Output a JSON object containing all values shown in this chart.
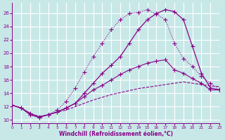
{
  "xlabel": "Windchill (Refroidissement éolien,°C)",
  "xlim": [
    0,
    23
  ],
  "ylim": [
    9.5,
    27.5
  ],
  "xticks": [
    0,
    1,
    2,
    3,
    4,
    5,
    6,
    7,
    8,
    9,
    10,
    11,
    12,
    13,
    14,
    15,
    16,
    17,
    18,
    19,
    20,
    21,
    22,
    23
  ],
  "yticks": [
    10,
    12,
    14,
    16,
    18,
    20,
    22,
    24,
    26
  ],
  "bg_color": "#c8e8e8",
  "line_color": "#880088",
  "grid_color": "#ffffff",
  "line1_x": [
    0,
    1,
    2,
    3,
    4,
    5,
    6,
    7,
    8,
    9,
    10,
    11,
    12,
    13,
    14,
    15,
    16,
    17,
    18,
    19,
    20,
    21,
    22,
    23
  ],
  "line1_y": [
    12.2,
    11.8,
    10.8,
    10.4,
    10.8,
    11.5,
    12.8,
    14.8,
    17.2,
    19.5,
    21.5,
    23.5,
    25.0,
    25.9,
    26.1,
    26.5,
    25.8,
    25.0,
    21.5,
    19.2,
    18.0,
    16.5,
    15.5,
    14.5
  ],
  "line2_x": [
    0,
    1,
    2,
    3,
    4,
    5,
    6,
    7,
    8,
    9,
    10,
    11,
    12,
    13,
    14,
    15,
    16,
    17,
    18,
    19,
    20,
    21,
    22,
    23
  ],
  "line2_y": [
    12.2,
    11.8,
    10.8,
    10.4,
    10.8,
    11.2,
    11.8,
    12.5,
    14.0,
    15.5,
    17.0,
    18.2,
    19.5,
    21.5,
    23.5,
    25.0,
    25.9,
    26.5,
    26.2,
    25.0,
    21.0,
    17.0,
    14.8,
    14.5
  ],
  "line3_x": [
    0,
    1,
    2,
    3,
    4,
    5,
    6,
    7,
    8,
    9,
    10,
    11,
    12,
    13,
    14,
    15,
    16,
    17,
    18,
    19,
    20,
    21,
    22,
    23
  ],
  "line3_y": [
    12.2,
    11.8,
    11.0,
    10.5,
    10.8,
    11.2,
    11.8,
    12.5,
    13.5,
    14.5,
    15.2,
    16.0,
    16.8,
    17.5,
    18.0,
    18.5,
    18.8,
    19.0,
    17.5,
    17.0,
    16.2,
    15.5,
    14.5,
    14.5
  ],
  "line4_x": [
    0,
    1,
    2,
    3,
    4,
    5,
    6,
    7,
    8,
    9,
    10,
    11,
    12,
    13,
    14,
    15,
    16,
    17,
    18,
    19,
    20,
    21,
    22,
    23
  ],
  "line4_y": [
    12.2,
    11.8,
    11.0,
    10.5,
    10.8,
    11.2,
    11.5,
    12.0,
    12.5,
    13.0,
    13.4,
    13.8,
    14.1,
    14.4,
    14.7,
    14.9,
    15.1,
    15.3,
    15.5,
    15.7,
    15.5,
    15.3,
    15.1,
    15.0
  ]
}
